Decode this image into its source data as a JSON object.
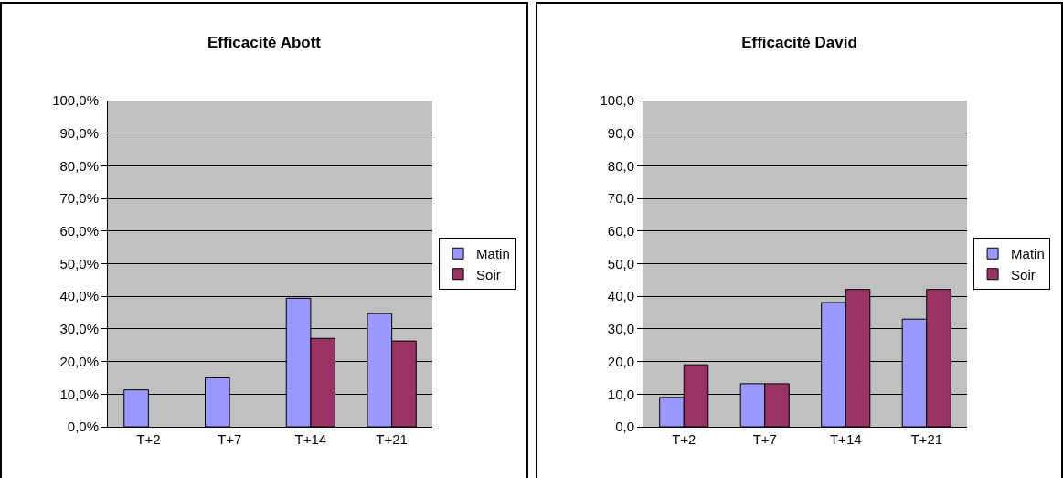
{
  "chart_data": [
    {
      "type": "bar",
      "title": "Efficacité Abott",
      "categories": [
        "T+2",
        "T+7",
        "T+14",
        "T+21"
      ],
      "series": [
        {
          "name": "Matin",
          "color": "#9999ff",
          "values": [
            11.3,
            15.0,
            39.4,
            34.7
          ]
        },
        {
          "name": "Soir",
          "color": "#993366",
          "values": [
            null,
            null,
            27.1,
            26.3
          ]
        }
      ],
      "ylim": [
        0,
        100
      ],
      "yticks": [
        {
          "value": 0,
          "label": "0,0%"
        },
        {
          "value": 10,
          "label": "10,0%"
        },
        {
          "value": 20,
          "label": "20,0%"
        },
        {
          "value": 30,
          "label": "30,0%"
        },
        {
          "value": 40,
          "label": "40,0%"
        },
        {
          "value": 50,
          "label": "50,0%"
        },
        {
          "value": 60,
          "label": "60,0%"
        },
        {
          "value": 70,
          "label": "70,0%"
        },
        {
          "value": 80,
          "label": "80,0%"
        },
        {
          "value": 90,
          "label": "90,0%"
        },
        {
          "value": 100,
          "label": "100,0%"
        }
      ],
      "grid": "y",
      "legend": "right"
    },
    {
      "type": "bar",
      "title": "Efficacité David",
      "categories": [
        "T+2",
        "T+7",
        "T+14",
        "T+21"
      ],
      "series": [
        {
          "name": "Matin",
          "color": "#9999ff",
          "values": [
            9.0,
            13.2,
            38.1,
            33.0
          ]
        },
        {
          "name": "Soir",
          "color": "#993366",
          "values": [
            19.0,
            13.2,
            42.1,
            42.1
          ]
        }
      ],
      "ylim": [
        0,
        100
      ],
      "yticks": [
        {
          "value": 0,
          "label": "0,0"
        },
        {
          "value": 10,
          "label": "10,0"
        },
        {
          "value": 20,
          "label": "20,0"
        },
        {
          "value": 30,
          "label": "30,0"
        },
        {
          "value": 40,
          "label": "40,0"
        },
        {
          "value": 50,
          "label": "50,0"
        },
        {
          "value": 60,
          "label": "60,0"
        },
        {
          "value": 70,
          "label": "70,0"
        },
        {
          "value": 80,
          "label": "80,0"
        },
        {
          "value": 90,
          "label": "90,0"
        },
        {
          "value": 100,
          "label": "100,0"
        }
      ],
      "grid": "y",
      "legend": "right"
    }
  ]
}
